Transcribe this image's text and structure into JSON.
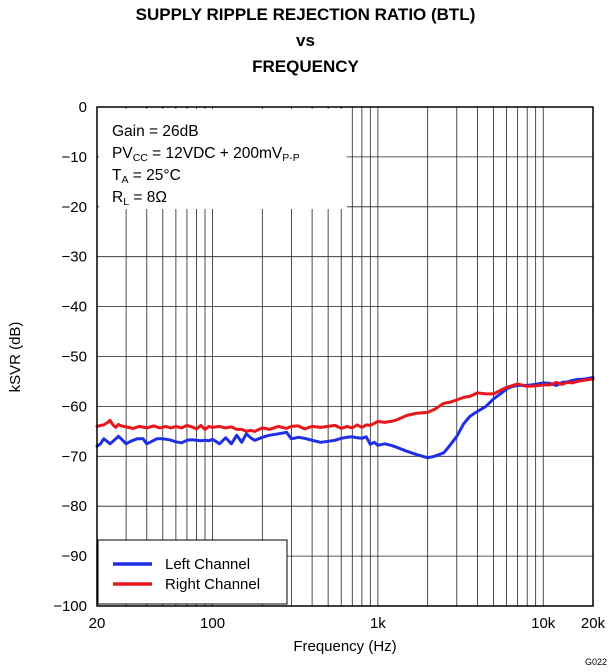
{
  "figure_id": "G022",
  "conditions": {
    "gain": "Gain = 26dB",
    "pvcc": {
      "pre": "PV",
      "sub": "CC",
      "mid": " = 12VDC + 200mV",
      "sub2": "P-P"
    },
    "ta": {
      "pre": "T",
      "sub": "A",
      "post": " = 25°C"
    },
    "rl": {
      "pre": "R",
      "sub": "L",
      "post": " = 8Ω"
    }
  },
  "chart_data": {
    "type": "line",
    "title_lines": [
      "SUPPLY RIPPLE REJECTION RATIO (BTL)",
      "vs",
      "FREQUENCY"
    ],
    "xlabel": "Frequency (Hz)",
    "ylabel": "kSVR (dB)",
    "xscale": "log",
    "xlim": [
      20,
      20000
    ],
    "ylim": [
      -100,
      0
    ],
    "xticks": [
      {
        "value": 20,
        "label": "20"
      },
      {
        "value": 100,
        "label": "100"
      },
      {
        "value": 1000,
        "label": "1k"
      },
      {
        "value": 10000,
        "label": "10k"
      },
      {
        "value": 20000,
        "label": "20k"
      }
    ],
    "yticks": [
      0,
      -10,
      -20,
      -30,
      -40,
      -50,
      -60,
      -70,
      -80,
      -90,
      -100
    ],
    "ytick_labels": [
      "0",
      "−10",
      "−20",
      "−30",
      "−40",
      "−50",
      "−60",
      "−70",
      "−80",
      "−90",
      "−100"
    ],
    "grid": true,
    "legend_position": "bottom-left",
    "series": [
      {
        "name": "Left Channel",
        "color": "#1f2fe6",
        "x": [
          20,
          21,
          22,
          23,
          24,
          25,
          26,
          27,
          28,
          30,
          32,
          35,
          38,
          40,
          43,
          46,
          50,
          55,
          60,
          65,
          70,
          75,
          80,
          85,
          90,
          95,
          100,
          110,
          120,
          130,
          140,
          150,
          160,
          170,
          180,
          200,
          220,
          250,
          280,
          300,
          330,
          360,
          400,
          450,
          500,
          550,
          600,
          650,
          700,
          750,
          800,
          850,
          900,
          950,
          1000,
          1100,
          1200,
          1300,
          1500,
          1700,
          2000,
          2200,
          2500,
          2700,
          3000,
          3300,
          3600,
          4000,
          4500,
          5000,
          5500,
          6000,
          6500,
          7000,
          8000,
          9000,
          10000,
          11000,
          12000,
          13000,
          14000,
          15000,
          16000,
          18000,
          20000
        ],
        "y": [
          -68,
          -67.5,
          -66.5,
          -67,
          -67.5,
          -67,
          -66.5,
          -66,
          -66.5,
          -67.5,
          -67,
          -66.5,
          -66.5,
          -67.5,
          -67,
          -66.5,
          -66.5,
          -66.7,
          -67.1,
          -67.3,
          -66.8,
          -66.7,
          -66.8,
          -66.9,
          -66.8,
          -66.9,
          -66.6,
          -67.5,
          -66.3,
          -67.5,
          -65.8,
          -67.2,
          -65.5,
          -66.3,
          -66.8,
          -66.2,
          -65.8,
          -65.5,
          -65.2,
          -66.5,
          -66.2,
          -66.4,
          -66.8,
          -67.2,
          -67.0,
          -66.8,
          -66.4,
          -66.2,
          -66.1,
          -66.3,
          -66.4,
          -66.1,
          -67.6,
          -67.2,
          -67.8,
          -67.5,
          -67.8,
          -68.2,
          -69.0,
          -69.6,
          -70.3,
          -70.0,
          -69.3,
          -68.0,
          -66.0,
          -63.5,
          -62.0,
          -61.0,
          -60.0,
          -58.5,
          -57.5,
          -56.5,
          -56.0,
          -55.8,
          -55.8,
          -55.6,
          -55.3,
          -55.4,
          -55.8,
          -55.2,
          -55.1,
          -54.8,
          -54.6,
          -54.5,
          -54.2
        ]
      },
      {
        "name": "Right Channel",
        "color": "#e8161d",
        "x": [
          20,
          21,
          22,
          23,
          24,
          25,
          26,
          27,
          28,
          30,
          33,
          36,
          40,
          44,
          48,
          52,
          56,
          60,
          65,
          70,
          75,
          80,
          85,
          90,
          95,
          100,
          110,
          120,
          130,
          140,
          150,
          160,
          170,
          180,
          200,
          220,
          250,
          280,
          300,
          330,
          360,
          400,
          450,
          500,
          550,
          600,
          650,
          700,
          750,
          800,
          850,
          900,
          1000,
          1100,
          1200,
          1300,
          1500,
          1700,
          2000,
          2200,
          2500,
          2700,
          3000,
          3300,
          3600,
          4000,
          4500,
          5000,
          5500,
          6000,
          7000,
          8000,
          9000,
          10000,
          11000,
          12000,
          13000,
          14000,
          15000,
          16000,
          18000,
          20000
        ],
        "y": [
          -64.0,
          -63.8,
          -63.7,
          -63.3,
          -62.8,
          -63.7,
          -64.2,
          -63.6,
          -63.9,
          -64.1,
          -64.4,
          -64.0,
          -64.3,
          -63.9,
          -64.3,
          -64.0,
          -64.3,
          -64.0,
          -64.3,
          -63.8,
          -64.1,
          -64.5,
          -63.8,
          -64.6,
          -64.0,
          -64.2,
          -64.0,
          -64.3,
          -64.1,
          -64.6,
          -64.6,
          -65.0,
          -64.8,
          -65.0,
          -64.3,
          -64.6,
          -64.0,
          -64.4,
          -64.0,
          -63.9,
          -64.5,
          -64.0,
          -64.2,
          -64.0,
          -63.8,
          -64.4,
          -64.0,
          -64.3,
          -63.7,
          -64.2,
          -63.7,
          -63.8,
          -63.0,
          -63.2,
          -63.0,
          -62.7,
          -61.8,
          -61.4,
          -61.2,
          -60.6,
          -59.4,
          -59.2,
          -58.7,
          -58.2,
          -58.0,
          -57.3,
          -57.5,
          -57.5,
          -56.8,
          -56.2,
          -55.5,
          -56.0,
          -55.9,
          -55.7,
          -55.7,
          -55.2,
          -55.6,
          -55.2,
          -55.3,
          -55.0,
          -54.7,
          -54.5
        ]
      }
    ]
  }
}
